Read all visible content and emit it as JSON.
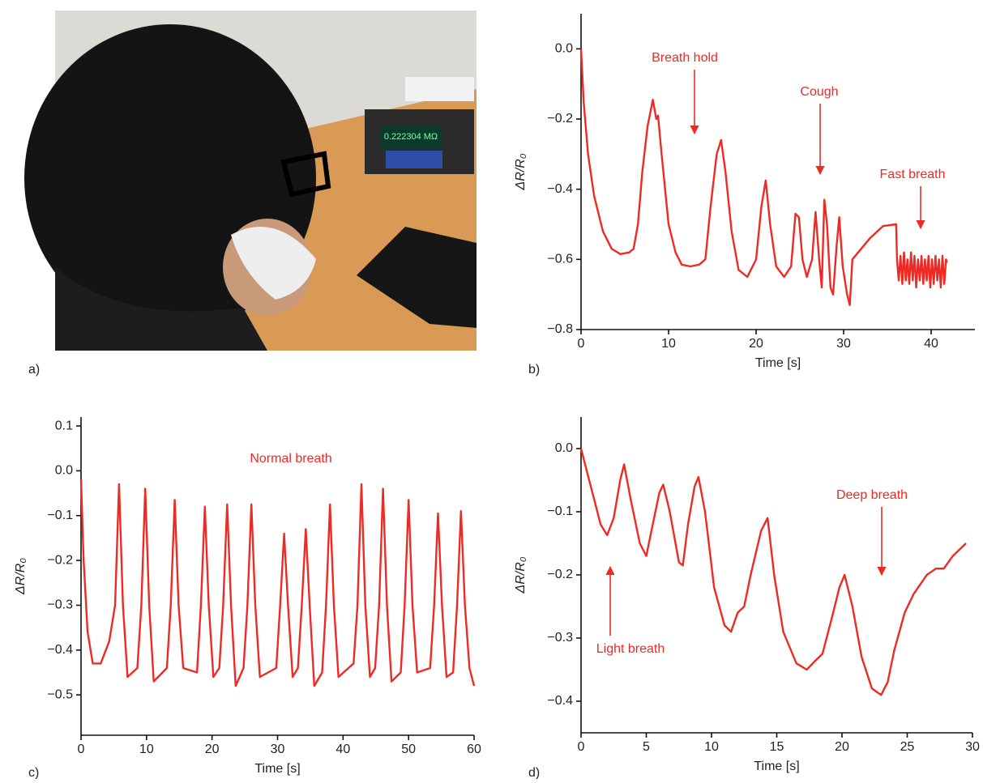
{
  "photo": {
    "panel_label": "a)",
    "display_reading": "0.222304 MΩ"
  },
  "chart_data": [
    {
      "type": "line",
      "panel_label": "b)",
      "x_label": "Time [s]",
      "y_label": "ΔR/R₀",
      "color": "#ee2a24",
      "annotations": [
        {
          "text": "Breath hold"
        },
        {
          "text": "Cough"
        },
        {
          "text": "Fast breath"
        }
      ],
      "xlim": [
        0,
        45
      ],
      "ylim": [
        -0.8,
        0.1
      ],
      "xticks": [
        0,
        10,
        20,
        30,
        40
      ],
      "yticks": [
        {
          "value": 0,
          "label": "0.0"
        },
        {
          "value": -0.2,
          "label": "−0.2"
        },
        {
          "value": -0.4,
          "label": "−0.4"
        },
        {
          "value": -0.6,
          "label": "−0.6"
        },
        {
          "value": -0.8,
          "label": "−0.8"
        }
      ],
      "x": [
        0,
        0.3,
        0.8,
        1.5,
        2.5,
        3.5,
        4.5,
        5.5,
        6,
        6.5,
        7,
        7.6,
        8.2,
        8.6,
        8.8,
        9.2,
        10,
        10.8,
        11.5,
        12.5,
        13.5,
        14.2,
        14.8,
        15.5,
        16,
        16.5,
        17.2,
        18,
        19,
        20,
        20.6,
        21.1,
        21.6,
        22.3,
        23.2,
        24,
        24.5,
        24.9,
        25.3,
        25.8,
        26.4,
        26.8,
        27.2,
        27.5,
        27.8,
        28.1,
        28.5,
        28.8,
        29.2,
        29.5,
        29.9,
        30.4,
        30.7,
        31,
        33,
        34.5,
        36,
        36.1,
        36.3,
        36.5,
        36.7,
        36.9,
        37.1,
        37.3,
        37.5,
        37.7,
        37.9,
        38.1,
        38.3,
        38.5,
        38.7,
        38.9,
        39.1,
        39.3,
        39.5,
        39.7,
        39.9,
        40.1,
        40.3,
        40.5,
        40.7,
        40.9,
        41.1,
        41.3,
        41.5,
        41.7,
        41.8
      ],
      "values": [
        0,
        -0.15,
        -0.3,
        -0.42,
        -0.52,
        -0.57,
        -0.585,
        -0.58,
        -0.57,
        -0.5,
        -0.35,
        -0.22,
        -0.145,
        -0.2,
        -0.19,
        -0.3,
        -0.5,
        -0.58,
        -0.615,
        -0.62,
        -0.615,
        -0.6,
        -0.45,
        -0.3,
        -0.26,
        -0.35,
        -0.52,
        -0.63,
        -0.65,
        -0.6,
        -0.45,
        -0.375,
        -0.5,
        -0.62,
        -0.65,
        -0.62,
        -0.47,
        -0.48,
        -0.6,
        -0.65,
        -0.6,
        -0.465,
        -0.6,
        -0.68,
        -0.43,
        -0.5,
        -0.68,
        -0.7,
        -0.56,
        -0.48,
        -0.62,
        -0.7,
        -0.73,
        -0.6,
        -0.54,
        -0.505,
        -0.5,
        -0.6,
        -0.66,
        -0.59,
        -0.67,
        -0.58,
        -0.66,
        -0.6,
        -0.67,
        -0.58,
        -0.66,
        -0.59,
        -0.68,
        -0.6,
        -0.66,
        -0.59,
        -0.67,
        -0.6,
        -0.66,
        -0.59,
        -0.68,
        -0.6,
        -0.67,
        -0.59,
        -0.66,
        -0.6,
        -0.68,
        -0.59,
        -0.67,
        -0.6,
        -0.61
      ]
    },
    {
      "type": "line",
      "panel_label": "c)",
      "x_label": "Time [s]",
      "y_label": "ΔR/R₀",
      "color": "#ee2a24",
      "annotations": [
        {
          "text": "Normal breath"
        }
      ],
      "xlim": [
        0,
        60
      ],
      "ylim": [
        -0.59,
        0.12
      ],
      "xticks": [
        0,
        10,
        20,
        30,
        40,
        50,
        60
      ],
      "yticks": [
        0.1,
        {
          "value": 0,
          "label": "0.0"
        },
        {
          "value": -0.1,
          "label": "−0.1"
        },
        {
          "value": -0.2,
          "label": "−0.2"
        },
        {
          "value": -0.3,
          "label": "−0.3"
        },
        {
          "value": -0.4,
          "label": "−0.4"
        },
        {
          "value": -0.5,
          "label": "−0.5"
        }
      ],
      "x": [
        0,
        0.4,
        1,
        1.8,
        3,
        4.3,
        5.2,
        5.8,
        6.4,
        7.1,
        8.6,
        9.2,
        9.8,
        10.4,
        11.1,
        13.1,
        13.7,
        14.3,
        14.9,
        15.6,
        17.7,
        18.3,
        18.9,
        19.5,
        20.2,
        21.1,
        21.7,
        22.3,
        22.9,
        23.6,
        24.8,
        25.4,
        26,
        26.6,
        27.3,
        29.8,
        30.4,
        31,
        31.6,
        32.3,
        33.1,
        33.7,
        34.3,
        34.9,
        35.6,
        36.8,
        37.4,
        38,
        38.6,
        39.3,
        41.6,
        42.2,
        42.8,
        43.4,
        44.1,
        44.9,
        45.5,
        46.1,
        46.7,
        47.4,
        48.8,
        49.4,
        50,
        50.6,
        51.3,
        53.3,
        53.9,
        54.5,
        55.1,
        55.8,
        56.8,
        57.4,
        58,
        58.6,
        59.3,
        60
      ],
      "values": [
        -0.02,
        -0.2,
        -0.36,
        -0.43,
        -0.43,
        -0.38,
        -0.3,
        -0.03,
        -0.3,
        -0.46,
        -0.44,
        -0.3,
        -0.04,
        -0.3,
        -0.47,
        -0.44,
        -0.3,
        -0.065,
        -0.3,
        -0.44,
        -0.45,
        -0.3,
        -0.08,
        -0.3,
        -0.46,
        -0.44,
        -0.3,
        -0.075,
        -0.3,
        -0.48,
        -0.44,
        -0.3,
        -0.075,
        -0.3,
        -0.46,
        -0.44,
        -0.3,
        -0.14,
        -0.3,
        -0.46,
        -0.44,
        -0.3,
        -0.13,
        -0.3,
        -0.48,
        -0.45,
        -0.3,
        -0.075,
        -0.3,
        -0.46,
        -0.43,
        -0.3,
        -0.03,
        -0.3,
        -0.46,
        -0.44,
        -0.3,
        -0.04,
        -0.3,
        -0.47,
        -0.45,
        -0.3,
        -0.065,
        -0.3,
        -0.45,
        -0.44,
        -0.3,
        -0.095,
        -0.3,
        -0.46,
        -0.45,
        -0.3,
        -0.09,
        -0.3,
        -0.44,
        -0.48
      ]
    },
    {
      "type": "line",
      "panel_label": "d)",
      "x_label": "Time [s]",
      "y_label": "ΔR/R₀",
      "color": "#ee2a24",
      "annotations": [
        {
          "text": "Light breath"
        },
        {
          "text": "Deep breath"
        }
      ],
      "xlim": [
        0,
        30
      ],
      "ylim": [
        -0.45,
        0.05
      ],
      "xticks": [
        0,
        5,
        10,
        15,
        20,
        25,
        30
      ],
      "yticks": [
        {
          "value": 0,
          "label": "0.0"
        },
        {
          "value": -0.1,
          "label": "−0.1"
        },
        {
          "value": -0.2,
          "label": "−0.2"
        },
        {
          "value": -0.3,
          "label": "−0.3"
        },
        {
          "value": -0.4,
          "label": "−0.4"
        }
      ],
      "x": [
        0,
        0.5,
        1,
        1.5,
        2,
        2.5,
        3,
        3.3,
        3.8,
        4.5,
        5,
        5.5,
        6,
        6.3,
        6.8,
        7.5,
        7.8,
        8.2,
        8.7,
        9,
        9.5,
        10.2,
        11,
        11.5,
        12,
        12.5,
        13,
        13.8,
        14.3,
        14.8,
        15.5,
        16.5,
        17.3,
        18,
        18.5,
        19.2,
        19.8,
        20.2,
        20.8,
        21.5,
        22.3,
        23,
        23.5,
        24,
        24.8,
        25.5,
        26.5,
        27.2,
        27.8,
        28.5,
        29.5
      ],
      "values": [
        0,
        -0.04,
        -0.08,
        -0.12,
        -0.137,
        -0.11,
        -0.05,
        -0.025,
        -0.08,
        -0.15,
        -0.17,
        -0.12,
        -0.07,
        -0.057,
        -0.1,
        -0.18,
        -0.185,
        -0.12,
        -0.06,
        -0.045,
        -0.1,
        -0.22,
        -0.28,
        -0.29,
        -0.26,
        -0.25,
        -0.2,
        -0.13,
        -0.11,
        -0.2,
        -0.29,
        -0.34,
        -0.35,
        -0.335,
        -0.325,
        -0.27,
        -0.22,
        -0.2,
        -0.25,
        -0.33,
        -0.38,
        -0.39,
        -0.37,
        -0.32,
        -0.26,
        -0.23,
        -0.2,
        -0.19,
        -0.19,
        -0.17,
        -0.15
      ]
    }
  ]
}
